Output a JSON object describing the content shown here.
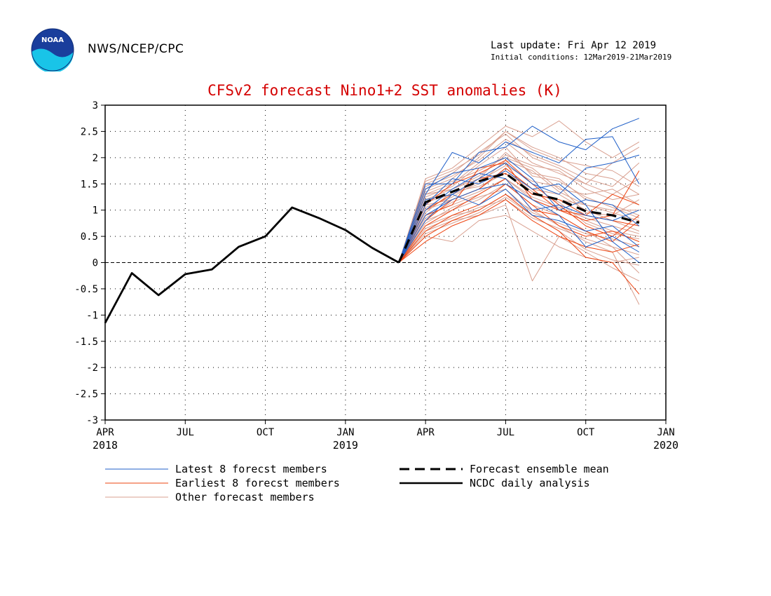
{
  "header": {
    "agency": "NWS/NCEP/CPC",
    "last_update": "Last update: Fri Apr 12 2019",
    "initial_conditions": "Initial conditions: 12Mar2019-21Mar2019",
    "logo_text": "NOAA"
  },
  "colors": {
    "title": "#d40000",
    "latest": "#1f5fc8",
    "earliest": "#ee4411",
    "other": "#d9a090",
    "analysis": "#000000",
    "mean": "#000000"
  },
  "chart_data": {
    "type": "line",
    "title": "CFSv2 forecast Nino1+2 SST anomalies (K)",
    "xlabel": "",
    "ylabel": "",
    "ylim": [
      -3,
      3
    ],
    "yticks": [
      "3",
      "2.5",
      "2",
      "1.5",
      "1",
      "0.5",
      "0",
      "-0.5",
      "-1",
      "-1.5",
      "-2",
      "-2.5",
      "-3"
    ],
    "xlim": [
      "2018-04",
      "2020-01"
    ],
    "xticks": [
      {
        "month": "2018-04",
        "label": "APR",
        "year": "2018"
      },
      {
        "month": "2018-07",
        "label": "JUL",
        "year": ""
      },
      {
        "month": "2018-10",
        "label": "OCT",
        "year": ""
      },
      {
        "month": "2019-01",
        "label": "JAN",
        "year": "2019"
      },
      {
        "month": "2019-04",
        "label": "APR",
        "year": ""
      },
      {
        "month": "2019-07",
        "label": "JUL",
        "year": ""
      },
      {
        "month": "2019-10",
        "label": "OCT",
        "year": ""
      },
      {
        "month": "2020-01",
        "label": "JAN",
        "year": "2020"
      }
    ],
    "grid": true,
    "legend": [
      {
        "label": "Latest 8 forecst members",
        "style": "latest"
      },
      {
        "label": "Earliest 8 forecst members",
        "style": "earliest"
      },
      {
        "label": "Other forecast members",
        "style": "other"
      },
      {
        "label": "Forecast ensemble mean",
        "style": "mean"
      },
      {
        "label": "NCDC daily analysis",
        "style": "analysis"
      }
    ],
    "forecast_months": [
      "2019-03",
      "2019-04",
      "2019-05",
      "2019-06",
      "2019-07",
      "2019-08",
      "2019-09",
      "2019-10",
      "2019-11",
      "2019-12"
    ],
    "series": [
      {
        "name": "NCDC daily analysis",
        "style": "analysis",
        "x": [
          "2018-04",
          "2018-05",
          "2018-06",
          "2018-07",
          "2018-08",
          "2018-09",
          "2018-10",
          "2018-11",
          "2018-12",
          "2019-01",
          "2019-02",
          "2019-03"
        ],
        "values": [
          -1.15,
          -0.2,
          -0.62,
          -0.22,
          -0.13,
          0.3,
          0.5,
          1.05,
          0.85,
          0.62,
          0.28,
          0.0
        ]
      },
      {
        "name": "Forecast ensemble mean",
        "style": "mean",
        "values": [
          0.0,
          1.15,
          1.35,
          1.55,
          1.7,
          1.32,
          1.2,
          0.98,
          0.9,
          0.76
        ]
      }
    ],
    "members": {
      "latest": [
        [
          0.0,
          1.5,
          1.5,
          2.1,
          2.2,
          2.6,
          2.3,
          2.15,
          2.55,
          2.75
        ],
        [
          0.0,
          1.3,
          2.1,
          1.9,
          2.3,
          2.1,
          1.9,
          2.35,
          2.4,
          1.5
        ],
        [
          0.0,
          1.2,
          1.3,
          1.6,
          1.9,
          1.5,
          1.3,
          1.8,
          1.9,
          2.05
        ],
        [
          0.0,
          1.0,
          1.4,
          1.7,
          1.6,
          1.0,
          1.1,
          0.9,
          0.8,
          1.0
        ],
        [
          0.0,
          0.9,
          1.2,
          1.4,
          1.5,
          1.2,
          0.9,
          0.3,
          0.5,
          0.2
        ],
        [
          0.0,
          1.1,
          1.6,
          1.5,
          1.75,
          1.4,
          1.5,
          1.1,
          0.4,
          0.0
        ],
        [
          0.0,
          0.8,
          1.3,
          1.1,
          1.4,
          0.9,
          0.8,
          0.6,
          0.7,
          0.3
        ],
        [
          0.0,
          1.4,
          1.7,
          1.8,
          2.0,
          1.6,
          1.0,
          1.2,
          1.1,
          0.7
        ]
      ],
      "earliest": [
        [
          0.0,
          0.9,
          1.1,
          1.8,
          1.9,
          1.2,
          1.0,
          0.8,
          0.9,
          1.75
        ],
        [
          0.0,
          0.7,
          1.0,
          1.3,
          1.6,
          1.0,
          0.9,
          0.6,
          0.4,
          0.8
        ],
        [
          0.0,
          0.5,
          0.8,
          1.0,
          1.3,
          0.9,
          0.6,
          0.1,
          0.0,
          -0.6
        ],
        [
          0.0,
          1.0,
          1.3,
          1.6,
          1.7,
          1.3,
          1.2,
          0.9,
          1.3,
          1.1
        ],
        [
          0.0,
          0.6,
          0.9,
          1.1,
          1.5,
          1.1,
          0.7,
          0.5,
          0.6,
          0.4
        ],
        [
          0.0,
          0.4,
          0.7,
          0.9,
          1.2,
          0.8,
          0.5,
          0.3,
          0.2,
          0.35
        ],
        [
          0.0,
          0.8,
          1.2,
          1.4,
          1.8,
          1.4,
          1.0,
          0.9,
          0.8,
          0.7
        ],
        [
          0.0,
          1.1,
          1.5,
          1.7,
          1.95,
          1.5,
          1.1,
          0.7,
          0.5,
          0.9
        ]
      ],
      "other": [
        [
          0.0,
          1.6,
          1.8,
          2.2,
          2.6,
          2.4,
          2.7,
          2.3,
          2.0,
          2.3
        ],
        [
          0.0,
          1.4,
          1.6,
          2.0,
          2.5,
          2.2,
          2.0,
          1.7,
          1.6,
          1.3
        ],
        [
          0.0,
          1.3,
          1.5,
          1.9,
          2.3,
          1.9,
          1.7,
          1.5,
          1.9,
          2.2
        ],
        [
          0.0,
          1.2,
          1.4,
          1.6,
          2.1,
          1.7,
          1.6,
          1.2,
          1.1,
          0.9
        ],
        [
          0.0,
          1.0,
          1.2,
          1.4,
          1.8,
          1.4,
          1.3,
          1.0,
          0.8,
          0.6
        ],
        [
          0.0,
          0.9,
          1.1,
          1.3,
          1.6,
          1.2,
          1.0,
          0.8,
          0.6,
          0.5
        ],
        [
          0.0,
          0.8,
          1.0,
          1.2,
          1.5,
          1.1,
          0.9,
          0.6,
          0.3,
          -0.2
        ],
        [
          0.0,
          0.7,
          0.9,
          1.0,
          1.3,
          1.0,
          0.7,
          0.4,
          0.2,
          -0.8
        ],
        [
          0.0,
          0.6,
          0.8,
          0.9,
          1.1,
          -0.35,
          0.5,
          0.2,
          -0.1,
          -0.35
        ],
        [
          0.0,
          0.5,
          0.4,
          0.8,
          0.9,
          0.6,
          0.3,
          0.1,
          0.0,
          0.1
        ],
        [
          0.0,
          1.5,
          1.7,
          2.1,
          2.45,
          2.0,
          1.8,
          1.5,
          1.3,
          1.6
        ],
        [
          0.0,
          1.35,
          1.55,
          1.75,
          2.0,
          1.8,
          1.4,
          1.3,
          1.4,
          1.1
        ],
        [
          0.0,
          1.05,
          1.25,
          1.55,
          1.85,
          1.55,
          1.45,
          0.95,
          0.9,
          1.2
        ],
        [
          0.0,
          0.95,
          1.35,
          1.45,
          1.7,
          1.3,
          1.2,
          1.1,
          0.95,
          0.8
        ],
        [
          0.0,
          0.75,
          1.05,
          1.25,
          1.4,
          0.95,
          0.75,
          0.55,
          0.45,
          0.3
        ],
        [
          0.0,
          1.25,
          1.45,
          1.85,
          2.2,
          1.65,
          1.55,
          1.25,
          1.05,
          0.85
        ],
        [
          0.0,
          1.15,
          1.3,
          1.5,
          1.95,
          1.75,
          1.35,
          1.1,
          1.0,
          1.0
        ],
        [
          0.0,
          0.85,
          1.15,
          1.35,
          1.6,
          1.25,
          1.05,
          0.85,
          0.7,
          0.55
        ],
        [
          0.0,
          1.45,
          1.65,
          1.95,
          2.35,
          2.05,
          1.85,
          1.6,
          1.45,
          1.9
        ],
        [
          0.0,
          0.65,
          0.85,
          1.05,
          1.2,
          0.85,
          0.65,
          0.45,
          0.3,
          0.15
        ],
        [
          0.0,
          1.55,
          1.75,
          2.05,
          2.5,
          2.15,
          1.95,
          1.85,
          1.75,
          1.45
        ],
        [
          0.0,
          1.1,
          1.2,
          1.4,
          1.75,
          1.35,
          1.15,
          0.75,
          0.55,
          0.45
        ],
        [
          0.0,
          0.55,
          0.75,
          0.95,
          1.25,
          0.9,
          0.6,
          0.25,
          0.05,
          -0.05
        ],
        [
          0.0,
          1.3,
          1.4,
          1.65,
          2.05,
          1.85,
          1.75,
          1.4,
          1.2,
          1.3
        ]
      ]
    }
  }
}
